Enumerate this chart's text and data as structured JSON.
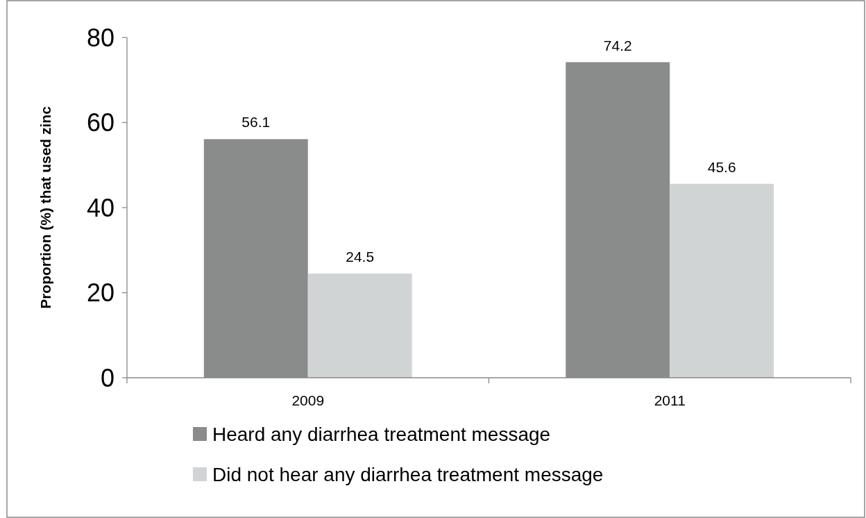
{
  "chart_data": {
    "type": "bar",
    "ylabel": "Proportion (%) that used zinc",
    "categories": [
      "2009",
      "2011"
    ],
    "series": [
      {
        "name": "Heard any diarrhea treatment message",
        "color": "#8a8c8c",
        "values": [
          56.1,
          74.2
        ]
      },
      {
        "name": "Did not hear any diarrhea treatment message",
        "color": "#d1d4d5",
        "values": [
          24.5,
          45.6
        ]
      }
    ],
    "ylim": [
      0,
      80
    ],
    "yticks": [
      0,
      20,
      40,
      60,
      80
    ],
    "data_labels": true,
    "legend": "bottom",
    "grid": false
  }
}
